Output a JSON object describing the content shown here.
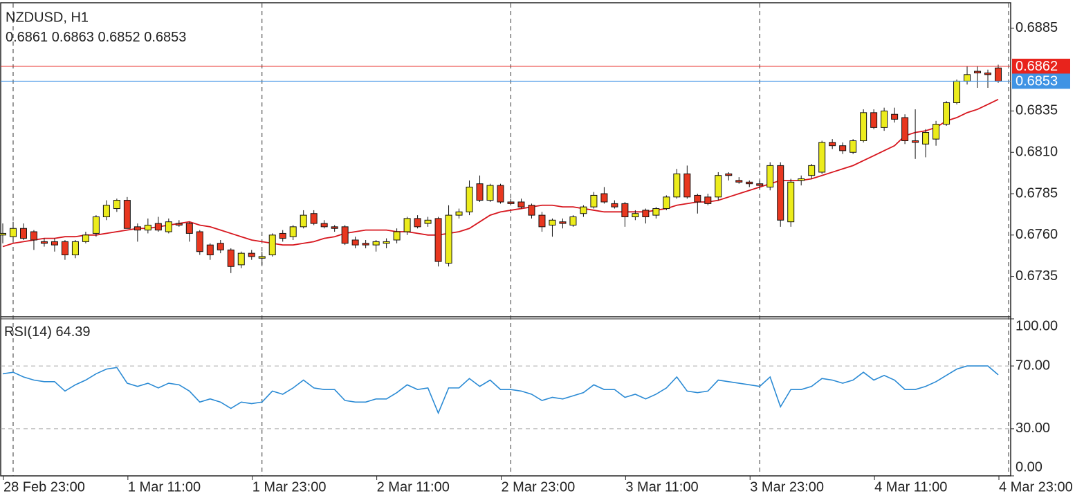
{
  "chart_data": {
    "type": "candlestick",
    "title": "NZDUSD, H1",
    "xlim": [
      -0.2,
      97.2
    ],
    "xticks": [
      {
        "value": 1,
        "label": "28 Feb 23:00"
      },
      {
        "value": 13,
        "label": "1 Mar 11:00"
      },
      {
        "value": 25,
        "label": "1 Mar 23:00"
      },
      {
        "value": 37,
        "label": "2 Mar 11:00"
      },
      {
        "value": 49,
        "label": "2 Mar 23:00"
      },
      {
        "value": 61,
        "label": "3 Mar 11:00"
      },
      {
        "value": 73,
        "label": "3 Mar 23:00"
      },
      {
        "value": 85,
        "label": "4 Mar 11:00"
      },
      {
        "value": 97,
        "label": "4 Mar 23:00"
      }
    ],
    "ylim": [
      0.6711,
      0.69
    ],
    "yticks": [
      0.6885,
      0.6835,
      {
        "value": 0.681,
        "label": "0.6810"
      },
      0.6785,
      {
        "value": 0.676,
        "label": "0.6760"
      },
      0.6735
    ],
    "up_color": "#ecec1c",
    "down_color": "#e8371f",
    "open": [
      0.676,
      0.6759,
      0.6764,
      0.6762,
      0.6756,
      0.6756,
      0.6756,
      0.6748,
      0.6756,
      0.6761,
      0.6771,
      0.6776,
      0.6781,
      0.6765,
      0.6763,
      0.6767,
      0.6762,
      0.6767,
      0.6767,
      0.6762,
      0.6754,
      0.6755,
      0.6751,
      0.6742,
      0.6749,
      0.6746,
      0.6748,
      0.6761,
      0.6759,
      0.6765,
      0.6773,
      0.6767,
      0.6765,
      0.6765,
      0.6757,
      0.6755,
      0.6754,
      0.6755,
      0.6757,
      0.6762,
      0.677,
      0.6767,
      0.677,
      0.6743,
      0.6772,
      0.6774,
      0.6791,
      0.6781,
      0.679,
      0.678,
      0.678,
      0.6778,
      0.6772,
      0.6766,
      0.6768,
      0.6766,
      0.6773,
      0.6777,
      0.6785,
      0.6779,
      0.6779,
      0.6771,
      0.6775,
      0.6772,
      0.6776,
      0.6783,
      0.6797,
      0.6784,
      0.6783,
      0.6783,
      0.6797,
      0.6793,
      0.6792,
      0.6791,
      0.6789,
      0.6802,
      0.6768,
      0.6793,
      0.6796,
      0.6798,
      0.6816,
      0.6814,
      0.681,
      0.6817,
      0.6834,
      0.6825,
      0.6833,
      0.6831,
      0.6817,
      0.6815,
      0.6818,
      0.6827,
      0.684,
      0.6853,
      0.6859,
      0.6858,
      0.6861
    ],
    "high": [
      0.6767,
      0.6768,
      0.6767,
      0.6763,
      0.6758,
      0.6758,
      0.6757,
      0.6757,
      0.6762,
      0.6772,
      0.6781,
      0.6782,
      0.6783,
      0.6767,
      0.677,
      0.6771,
      0.677,
      0.6769,
      0.6768,
      0.6763,
      0.6755,
      0.6757,
      0.6752,
      0.675,
      0.6751,
      0.675,
      0.6761,
      0.6763,
      0.6766,
      0.6775,
      0.6775,
      0.6769,
      0.6766,
      0.6766,
      0.6759,
      0.6757,
      0.6757,
      0.6758,
      0.6764,
      0.6771,
      0.6772,
      0.6771,
      0.6771,
      0.6778,
      0.6776,
      0.6793,
      0.6796,
      0.6791,
      0.6791,
      0.6782,
      0.6782,
      0.6779,
      0.6774,
      0.677,
      0.677,
      0.6772,
      0.6778,
      0.6786,
      0.6789,
      0.6781,
      0.678,
      0.6775,
      0.6776,
      0.6777,
      0.6784,
      0.68,
      0.6802,
      0.6785,
      0.6785,
      0.6798,
      0.6798,
      0.6795,
      0.6793,
      0.6793,
      0.6804,
      0.6804,
      0.6794,
      0.6796,
      0.6803,
      0.6817,
      0.6818,
      0.6816,
      0.6818,
      0.6836,
      0.6836,
      0.6837,
      0.6837,
      0.6833,
      0.6836,
      0.6824,
      0.6829,
      0.6841,
      0.6854,
      0.6862,
      0.6862,
      0.686,
      0.6863
    ],
    "low": [
      0.6755,
      0.6756,
      0.6757,
      0.6751,
      0.6753,
      0.675,
      0.6745,
      0.6746,
      0.6755,
      0.6759,
      0.6769,
      0.6774,
      0.6764,
      0.6756,
      0.6761,
      0.6762,
      0.6761,
      0.6765,
      0.6756,
      0.6748,
      0.6745,
      0.6749,
      0.6737,
      0.674,
      0.6745,
      0.6742,
      0.6747,
      0.6756,
      0.6757,
      0.6764,
      0.6766,
      0.6764,
      0.6762,
      0.6754,
      0.6752,
      0.6752,
      0.675,
      0.6752,
      0.6755,
      0.676,
      0.6764,
      0.6765,
      0.6741,
      0.6741,
      0.677,
      0.6772,
      0.678,
      0.678,
      0.6779,
      0.6778,
      0.6776,
      0.677,
      0.6762,
      0.6759,
      0.6764,
      0.6765,
      0.6771,
      0.6776,
      0.6779,
      0.6776,
      0.6765,
      0.6769,
      0.6767,
      0.677,
      0.6775,
      0.6782,
      0.6782,
      0.6773,
      0.6778,
      0.6781,
      0.6793,
      0.6791,
      0.6789,
      0.6788,
      0.6787,
      0.6765,
      0.6765,
      0.679,
      0.6794,
      0.6797,
      0.6812,
      0.6809,
      0.6809,
      0.6816,
      0.6824,
      0.6823,
      0.6828,
      0.6815,
      0.6806,
      0.6807,
      0.6814,
      0.6826,
      0.6839,
      0.6851,
      0.6849,
      0.6849,
      0.6852
    ],
    "close": [
      0.6761,
      0.6764,
      0.6758,
      0.6757,
      0.6755,
      0.6754,
      0.6748,
      0.6756,
      0.676,
      0.6771,
      0.6778,
      0.6781,
      0.6764,
      0.6763,
      0.6766,
      0.6763,
      0.6768,
      0.6766,
      0.6761,
      0.675,
      0.6748,
      0.6751,
      0.6741,
      0.6749,
      0.6747,
      0.6747,
      0.676,
      0.6758,
      0.6765,
      0.6772,
      0.6767,
      0.6765,
      0.6764,
      0.6755,
      0.6754,
      0.6754,
      0.6756,
      0.6756,
      0.6762,
      0.677,
      0.6765,
      0.6769,
      0.6744,
      0.6772,
      0.6774,
      0.6789,
      0.6781,
      0.679,
      0.678,
      0.6779,
      0.6777,
      0.6772,
      0.6765,
      0.6769,
      0.6767,
      0.6771,
      0.6777,
      0.6784,
      0.678,
      0.6777,
      0.6771,
      0.6773,
      0.6771,
      0.6776,
      0.6783,
      0.6797,
      0.6783,
      0.678,
      0.6779,
      0.6796,
      0.6796,
      0.6792,
      0.6791,
      0.679,
      0.6802,
      0.6769,
      0.6792,
      0.6794,
      0.6802,
      0.6816,
      0.6814,
      0.6811,
      0.6817,
      0.6834,
      0.6825,
      0.6835,
      0.683,
      0.6817,
      0.6816,
      0.6822,
      0.6827,
      0.684,
      0.6853,
      0.6857,
      0.6858,
      0.6857,
      0.6853
    ],
    "moving_average": {
      "color": "#d7161e",
      "values": [
        0.6753,
        0.6755,
        0.6756,
        0.6757,
        0.6758,
        0.6758,
        0.6759,
        0.6759,
        0.676,
        0.676,
        0.6761,
        0.6762,
        0.6763,
        0.6764,
        0.6764,
        0.6765,
        0.6766,
        0.6767,
        0.6768,
        0.6766,
        0.6765,
        0.6763,
        0.6761,
        0.6759,
        0.6757,
        0.6756,
        0.6755,
        0.6754,
        0.6754,
        0.6755,
        0.6756,
        0.6758,
        0.6759,
        0.6761,
        0.6762,
        0.6763,
        0.6763,
        0.6763,
        0.6762,
        0.6762,
        0.6761,
        0.676,
        0.676,
        0.6761,
        0.6762,
        0.6764,
        0.6768,
        0.6772,
        0.6774,
        0.6775,
        0.6776,
        0.6777,
        0.6778,
        0.6778,
        0.6777,
        0.6777,
        0.6776,
        0.6775,
        0.6774,
        0.6774,
        0.6774,
        0.6774,
        0.6774,
        0.6775,
        0.6776,
        0.6778,
        0.6779,
        0.678,
        0.678,
        0.6781,
        0.6783,
        0.6785,
        0.6787,
        0.6789,
        0.6791,
        0.6793,
        0.6793,
        0.6793,
        0.6794,
        0.6796,
        0.6798,
        0.68,
        0.6802,
        0.6805,
        0.6808,
        0.6811,
        0.6814,
        0.682,
        0.6822,
        0.6823,
        0.6825,
        0.6829,
        0.6831,
        0.6834,
        0.6836,
        0.6839,
        0.6842
      ]
    },
    "price_lines": [
      {
        "value": 0.6862,
        "color": "#e8231c"
      },
      {
        "value": 0.6853,
        "color": "#3f93e4"
      }
    ],
    "indicator": {
      "type": "line",
      "name": "RSI(14)",
      "color": "#2a8ad4",
      "ylim": [
        0,
        100
      ],
      "yticks": [
        {
          "value": 100,
          "label": "100.00"
        },
        {
          "value": 70,
          "label": "70.00"
        },
        {
          "value": 30,
          "label": "30.00"
        },
        {
          "value": 0,
          "label": "0.00"
        }
      ],
      "values": [
        65,
        66,
        63,
        61,
        60,
        60,
        54,
        58,
        61,
        65,
        68,
        69,
        59,
        57,
        59,
        56,
        59,
        58,
        54,
        47,
        49,
        47,
        43,
        47,
        46,
        47,
        54,
        52,
        56,
        61,
        56,
        55,
        55,
        48,
        47,
        47,
        49,
        49,
        53,
        58,
        55,
        56,
        40,
        56,
        56,
        62,
        57,
        61,
        55,
        55,
        54,
        52,
        48,
        50,
        49,
        51,
        53,
        58,
        55,
        55,
        50,
        52,
        49,
        52,
        56,
        63,
        54,
        53,
        54,
        61,
        60,
        59,
        58,
        57,
        63,
        44,
        55,
        55,
        57,
        62,
        61,
        59,
        61,
        66,
        61,
        64,
        61,
        55,
        55,
        57,
        60,
        64,
        68,
        70,
        70,
        70,
        64.39
      ]
    }
  }
}
